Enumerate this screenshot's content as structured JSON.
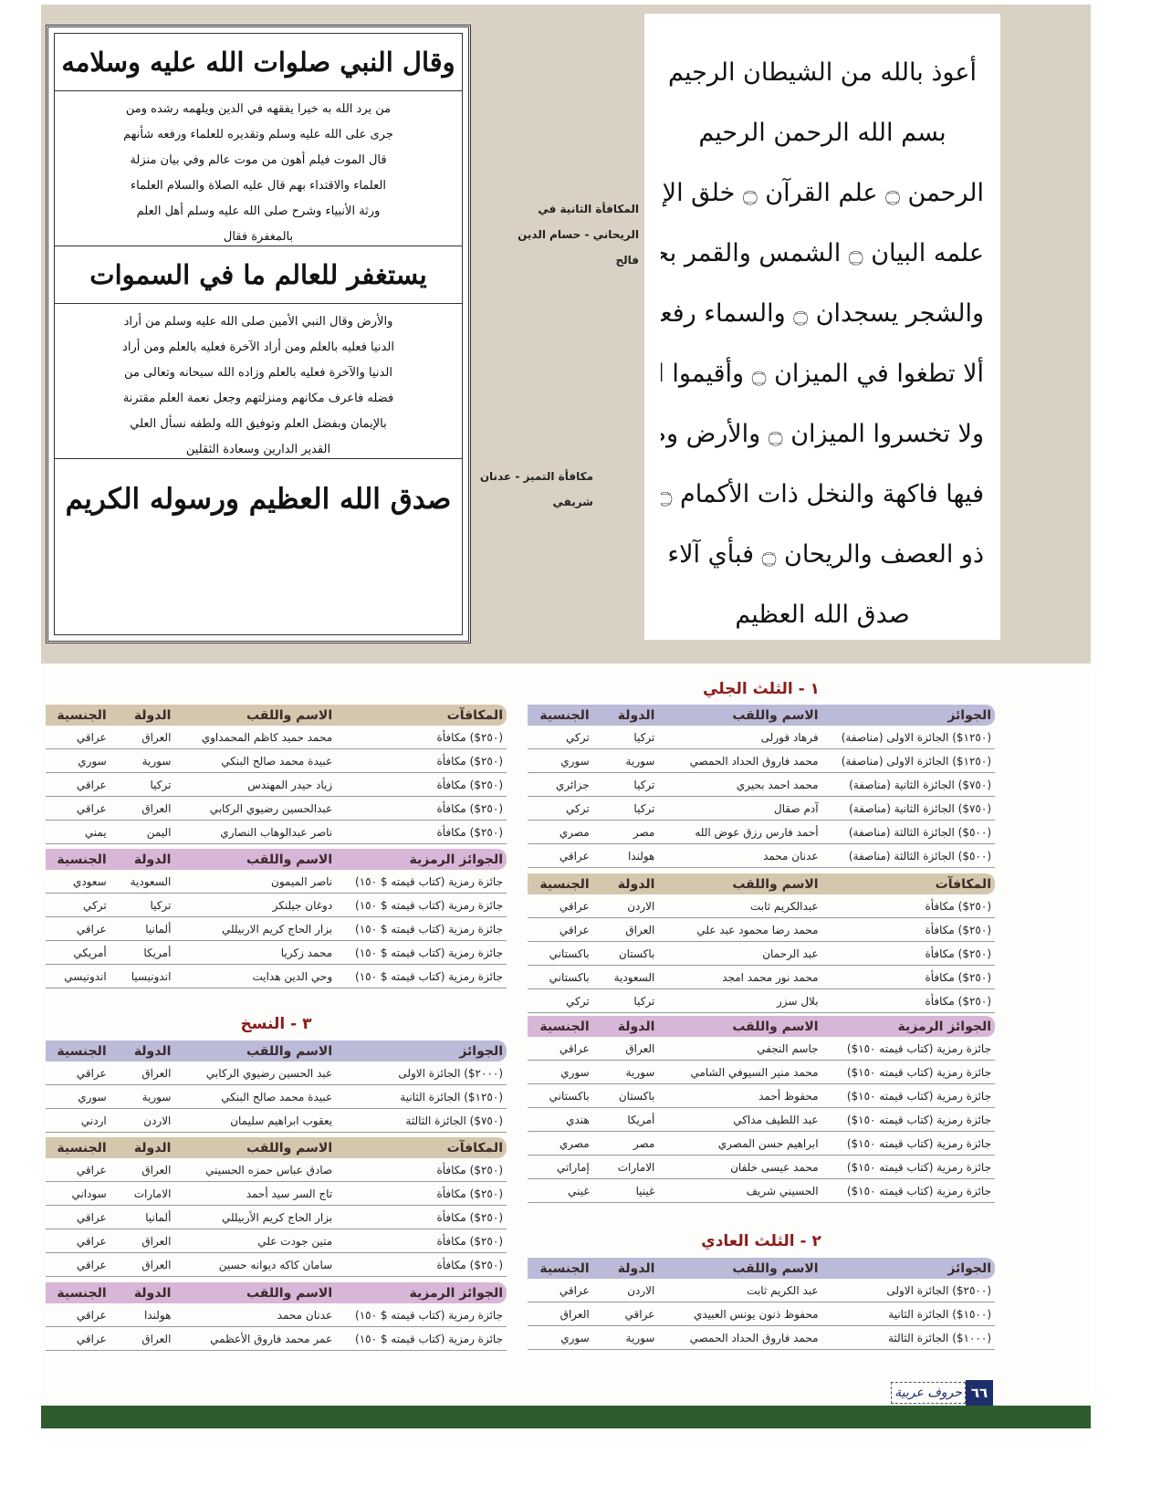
{
  "calligraphy_right": [
    "أعوذ بالله من الشيطان الرجيم",
    "بسم الله الرحمن الرحيم",
    "الرحمن ۝ علم القرآن ۝ خلق الإنسان ۝",
    "علمه البيان ۝ الشمس والقمر بحسبان ۝ والنجم",
    "والشجر يسجدان ۝ والسماء رفعها ووضع الميزان ۝",
    "ألا تطغوا في الميزان ۝ وأقيموا الوزن بالقسط",
    "ولا تخسروا الميزان ۝ والأرض وضعها للأنام ۝",
    "فيها فاكهة والنخل ذات الأكمام ۝ والحب",
    "ذو العصف والريحان ۝ فبأي آلاء ربكما تكذبان ۝",
    "صدق الله العظيم"
  ],
  "calligraphy_left": {
    "heading1": "وقال النبي صلوات الله عليه وسلامه",
    "para1": "من يرد الله به خيرا يفقهه في الدين ويلهمه رشده ومن جرى على الله عليه وسلم وتقديره للعلماء ورفعه شأنهم قال الموت فيلم أهون من موت عالم وفي بيان منزلة العلماء والاقتداء بهم قال عليه الصلاة والسلام العلماء ورثة الأنبياء وشرح صلى الله عليه وسلم أهل العلم بالمغفرة فقال",
    "heading2": "يستغفر للعالم ما في السموات",
    "para2": "والأرض وقال النبي الأمين صلى الله عليه وسلم من أراد الدنيا فعليه بالعلم ومن أراد الآخرة فعليه بالعلم ومن أراد الدنيا والآخرة فعليه بالعلم وزاده الله سبحانه وتعالى من فضله فاعرف مكانهم ومنزلتهم وجعل نعمة العلم مقترنة بالإيمان وبفضل العلم وتوفيق الله ولطفه نسأل العلي القدير الدارين وسعادة الثقلين",
    "heading3": "صدق الله العظيم ورسوله الكريم"
  },
  "captions": {
    "second_prize": [
      "المكافأة الثانية في",
      "الريحاني - حسام الدين",
      "فالح"
    ],
    "excellence": [
      "مكافأة التميز - عدنان",
      "شريفي"
    ]
  },
  "colors": {
    "blue_header": "#bbbad9",
    "tan_header": "#d3c8ad",
    "pink_header": "#d8b6d8",
    "title": "#8a1d1d",
    "footer_green": "#2e5b2e",
    "page_number_box": "#1d2f6a"
  },
  "sections": {
    "s1_title": "١ - الثلث الجلي",
    "s2_title": "٢ - الثلث العادي",
    "s3_title": "٣ - النسخ"
  },
  "tables": [
    {
      "color": "blue",
      "header": [
        "الجوائز",
        "الاسم واللقب",
        "الدولة",
        "الجنسية"
      ],
      "rows": [
        [
          "(١٢٥٠$) الجائزة الاولى (مناصفة)",
          "فرهاد قورلى",
          "تركيا",
          "تركي"
        ],
        [
          "(١٢٥٠$) الجائزة الاولى (مناصفة)",
          "محمد فاروق الحداد الحمصي",
          "سورية",
          "سوري"
        ],
        [
          "(٧٥٠$) الجائزة الثانية (مناصفة)",
          "محمد احمد بحيري",
          "تركيا",
          "جزائري"
        ],
        [
          "(٧٥٠$) الجائزة الثانية (مناصفة)",
          "آدم صقال",
          "تركيا",
          "تركي"
        ],
        [
          "(٥٠٠$) الجائزة الثالثة (مناصفة)",
          "أحمد فارس رزق عوض الله",
          "مصر",
          "مصري"
        ],
        [
          "(٥٠٠$) الجائزة الثالثة (مناصفة)",
          "عدنان محمد",
          "هولندا",
          "عراقي"
        ]
      ]
    },
    {
      "color": "tan",
      "header": [
        "المكافآت",
        "الاسم واللقب",
        "الدولة",
        "الجنسية"
      ],
      "rows": [
        [
          "(٢٥٠$) مكافأة",
          "عبدالكريم ثابت",
          "الاردن",
          "عراقي"
        ],
        [
          "(٢٥٠$) مكافأة",
          "محمد رضا محمود عبد علي",
          "العراق",
          "عراقي"
        ],
        [
          "(٢٥٠$) مكافأة",
          "عبد الرحمان",
          "باكستان",
          "باكستاني"
        ],
        [
          "(٢٥٠$) مكافأة",
          "محمد نور محمد امجد",
          "السعودية",
          "باكستاني"
        ],
        [
          "(٢٥٠$) مكافأة",
          "بلال سزر",
          "تركيا",
          "تركي"
        ]
      ]
    },
    {
      "color": "pink",
      "header": [
        "الجوائز الرمزية",
        "الاسم واللقب",
        "الدولة",
        "الجنسية"
      ],
      "rows": [
        [
          "جائزة رمزية (كتاب قيمته ١٥٠$)",
          "جاسم النجفي",
          "العراق",
          "عراقي"
        ],
        [
          "جائزة رمزية (كتاب قيمته ١٥٠$)",
          "محمد منير السيوفي الشامي",
          "سورية",
          "سوري"
        ],
        [
          "جائزة رمزية (كتاب قيمته ١٥٠$)",
          "محفوظ أحمد",
          "باكستان",
          "باكستاني"
        ],
        [
          "جائزة رمزية (كتاب قيمته ١٥٠$)",
          "عبد اللطيف مداكي",
          "أمريكا",
          "هندي"
        ],
        [
          "جائزة رمزية (كتاب قيمته ١٥٠$)",
          "ابراهيم حسن المصري",
          "مصر",
          "مصري"
        ],
        [
          "جائزة رمزية (كتاب قيمته ١٥٠$)",
          "محمد عيسى خلفان",
          "الامارات",
          "إماراتي"
        ],
        [
          "جائزة رمزية (كتاب قيمته ١٥٠$)",
          "الحسيني شريف",
          "غينيا",
          "غيني"
        ]
      ]
    },
    {
      "color": "blue",
      "header": [
        "الجوائز",
        "الاسم واللقب",
        "الدولة",
        "الجنسية"
      ],
      "rows": [
        [
          "(٢٥٠٠$) الجائزة الاولى",
          "عبد الكريم ثابت",
          "الاردن",
          "عراقي"
        ],
        [
          "(١٥٠٠$) الجائزة الثانية",
          "محفوظ ذنون يونس العبيدي",
          "عراقي",
          "العراق"
        ],
        [
          "(١٠٠٠$) الجائزة الثالثة",
          "محمد فاروق الحداد الحمصي",
          "سورية",
          "سوري"
        ]
      ]
    },
    {
      "color": "tan",
      "header": [
        "المكافآت",
        "الاسم واللقب",
        "الدولة",
        "الجنسية"
      ],
      "rows": [
        [
          "(٢٥٠$) مكافأة",
          "محمد حميد كاظم المحمداوي",
          "العراق",
          "عراقي"
        ],
        [
          "(٢٥٠$) مكافأة",
          "عبيدة محمد صالح البنكي",
          "سورية",
          "سوري"
        ],
        [
          "(٢٥٠$) مكافأة",
          "زياد حيدر المهندس",
          "تركيا",
          "عراقي"
        ],
        [
          "(٢٥٠$) مكافأة",
          "عبدالحسين رضيوي الركابي",
          "العراق",
          "عراقي"
        ],
        [
          "(٢٥٠$) مكافأة",
          "ناصر عبدالوهاب النصاري",
          "اليمن",
          "يمني"
        ]
      ]
    },
    {
      "color": "pink",
      "header": [
        "الجوائز الرمزية",
        "الاسم واللقب",
        "الدولة",
        "الجنسية"
      ],
      "rows": [
        [
          "جائزة رمزية (كتاب قيمته $ ١٥٠)",
          "ناصر الميمون",
          "السعودية",
          "سعودي"
        ],
        [
          "جائزة رمزية (كتاب قيمته $ ١٥٠)",
          "دوغان جيلنكر",
          "تركيا",
          "تركي"
        ],
        [
          "جائزة رمزية (كتاب قيمته $ ١٥٠)",
          "بزار الحاج كريم الاربيللي",
          "ألمانيا",
          "عراقي"
        ],
        [
          "جائزة رمزية (كتاب قيمته $ ١٥٠)",
          "محمد زكريا",
          "أمريكا",
          "أمريكي"
        ],
        [
          "جائزة رمزية (كتاب قيمته $ ١٥٠)",
          "وحي الدين هدايت",
          "اندونيسيا",
          "اندونيسي"
        ]
      ]
    },
    {
      "color": "blue",
      "header": [
        "الجوائز",
        "الاسم واللقب",
        "الدولة",
        "الجنسية"
      ],
      "rows": [
        [
          "(٢٠٠٠$) الجائزة الاولى",
          "عبد الحسين رضيوي الركابي",
          "العراق",
          "عراقي"
        ],
        [
          "(١٢٥٠$) الجائزة الثانية",
          "عبيدة محمد صالح البنكي",
          "سورية",
          "سوري"
        ],
        [
          "(٧٥٠$) الجائزة الثالثة",
          "يعقوب ابراهيم سليمان",
          "الاردن",
          "اردني"
        ]
      ]
    },
    {
      "color": "tan",
      "header": [
        "المكافآت",
        "الاسم واللقب",
        "الدولة",
        "الجنسية"
      ],
      "rows": [
        [
          "(٢٥٠$) مكافأة",
          "صادق عباس حمزه الحسيني",
          "العراق",
          "عراقي"
        ],
        [
          "(٢٥٠$) مكافأة",
          "تاج السر سيد أحمد",
          "الامارات",
          "سوداني"
        ],
        [
          "(٢٥٠$) مكافأة",
          "بزار الحاج كريم الأربيللي",
          "ألمانيا",
          "عراقي"
        ],
        [
          "(٢٥٠$) مكافأة",
          "متين جودت علي",
          "العراق",
          "عراقي"
        ],
        [
          "(٢٥٠$) مكافأة",
          "سامان كاكه ديوانه حسين",
          "العراق",
          "عراقي"
        ]
      ]
    },
    {
      "color": "pink",
      "header": [
        "الجوائز الرمزية",
        "الاسم واللقب",
        "الدولة",
        "الجنسية"
      ],
      "rows": [
        [
          "جائزة رمزية (كتاب قيمته $ ١٥٠)",
          "عدنان محمد",
          "هولندا",
          "عراقي"
        ],
        [
          "جائزة رمزية (كتاب قيمته $ ١٥٠)",
          "عمر محمد فاروق الأعظمي",
          "العراق",
          "عراقي"
        ]
      ]
    }
  ],
  "footer": {
    "page_number": "٦٦",
    "magazine_logo": "حروف عربية"
  }
}
